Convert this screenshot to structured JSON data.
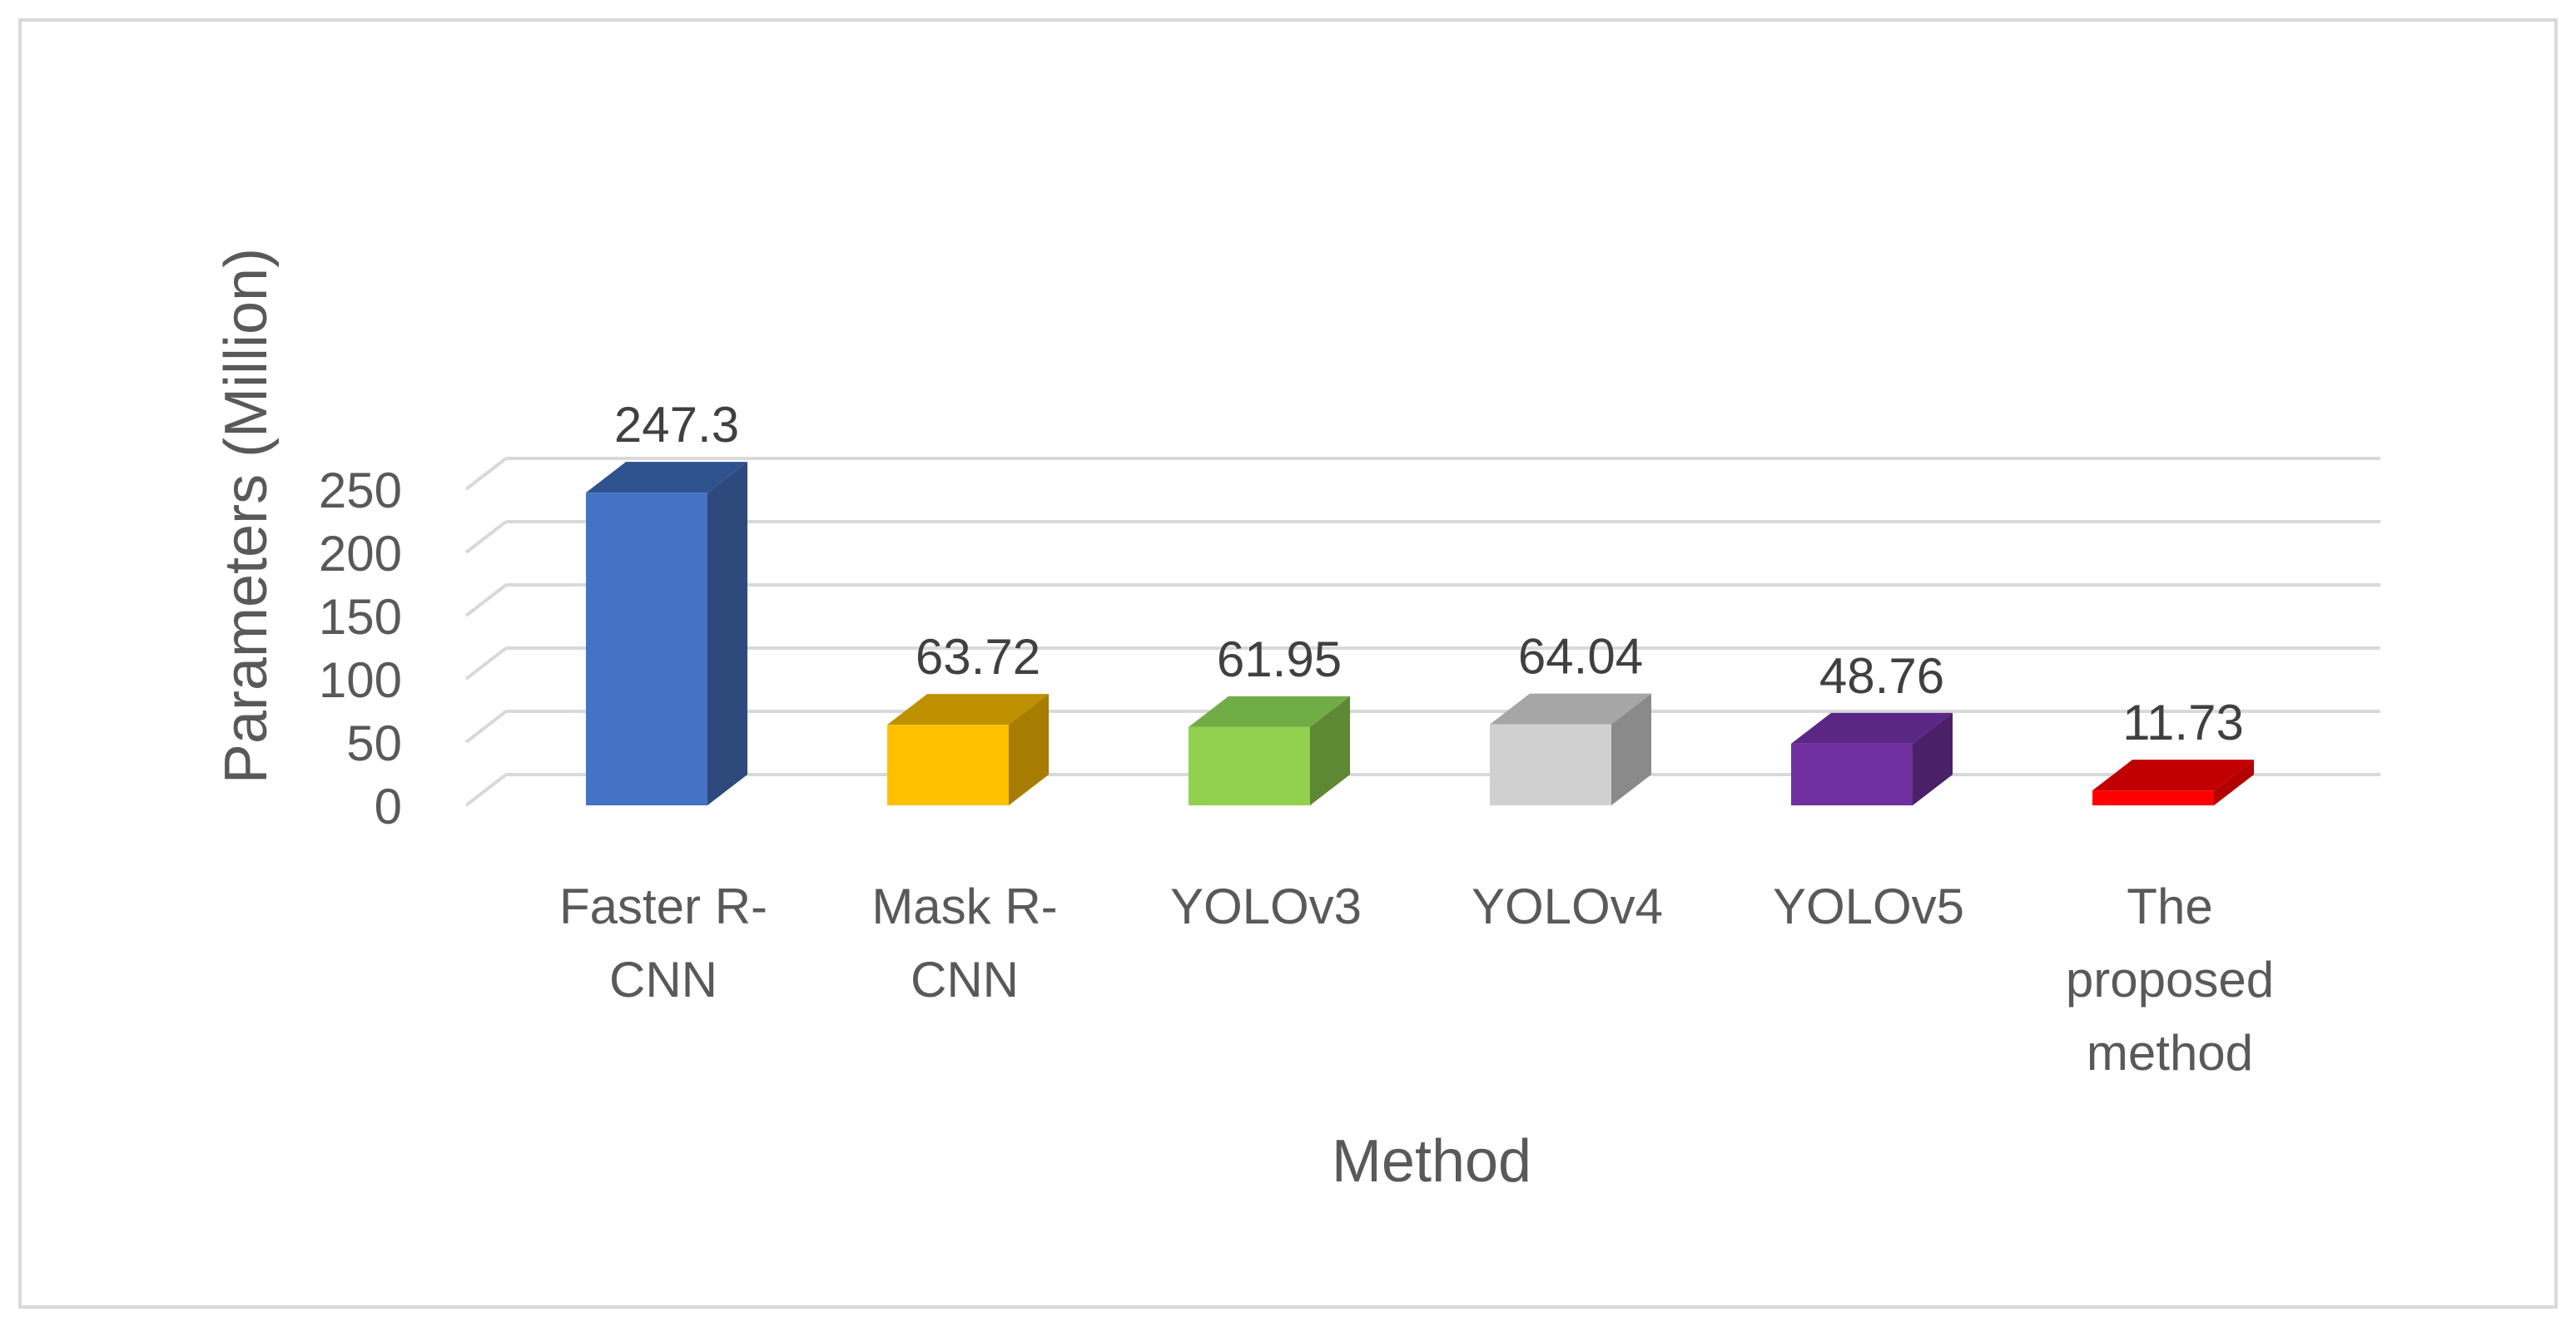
{
  "chart_data": {
    "type": "bar",
    "style": "3d-column",
    "title": "",
    "xlabel": "Method",
    "ylabel": "Parameters (Million)",
    "ylim": [
      0,
      250
    ],
    "yticks": [
      0,
      50,
      100,
      150,
      200,
      250
    ],
    "grid": true,
    "legend": "none",
    "categories": [
      [
        "Faster R-",
        "CNN"
      ],
      [
        "Mask R-",
        "CNN"
      ],
      [
        "YOLOv3"
      ],
      [
        "YOLOv4"
      ],
      [
        "YOLOv5"
      ],
      [
        "The",
        "proposed",
        "method"
      ]
    ],
    "values": [
      247.3,
      63.72,
      61.95,
      64.04,
      48.76,
      11.73
    ],
    "value_labels": [
      "247.3",
      "63.72",
      "61.95",
      "64.04",
      "48.76",
      "11.73"
    ],
    "colors": [
      {
        "front": "#4472c4",
        "side": "#2e4a7d",
        "top": "#2f528f"
      },
      {
        "front": "#ffc000",
        "side": "#a67d00",
        "top": "#bf9000"
      },
      {
        "front": "#92d050",
        "side": "#5e8834",
        "top": "#70ad47"
      },
      {
        "front": "#d0d0d0",
        "side": "#8a8a8a",
        "top": "#a6a6a6"
      },
      {
        "front": "#7030a0",
        "side": "#4a2068",
        "top": "#5b2785"
      },
      {
        "front": "#ff0000",
        "side": "#b30000",
        "top": "#c00000"
      }
    ],
    "gridline_color": "#d9d9d9"
  }
}
